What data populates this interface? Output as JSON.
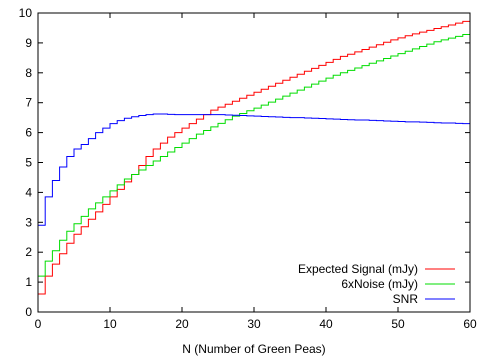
{
  "chart_data": {
    "type": "line",
    "title": "",
    "xlabel": "N (Number of Green Peas)",
    "ylabel": "",
    "xlim": [
      0,
      60
    ],
    "ylim": [
      0,
      10
    ],
    "x_ticks": [
      0,
      10,
      20,
      30,
      40,
      50,
      60
    ],
    "y_ticks": [
      0,
      1,
      2,
      3,
      4,
      5,
      6,
      7,
      8,
      9,
      10
    ],
    "grid": false,
    "legend_position": "bottom-right",
    "step": true,
    "series": [
      {
        "name": "Expected Signal (mJy)",
        "color": "#ff0000",
        "x": [
          0,
          1,
          2,
          3,
          4,
          5,
          6,
          7,
          8,
          9,
          10,
          11,
          12,
          13,
          14,
          15,
          16,
          17,
          18,
          19,
          20,
          21,
          22,
          23,
          24,
          25,
          26,
          27,
          28,
          29,
          30,
          31,
          32,
          33,
          34,
          35,
          36,
          37,
          38,
          39,
          40,
          41,
          42,
          43,
          44,
          45,
          46,
          47,
          48,
          49,
          50,
          51,
          52,
          53,
          54,
          55,
          56,
          57,
          58,
          59,
          60
        ],
        "y": [
          0.6,
          1.2,
          1.6,
          1.95,
          2.3,
          2.6,
          2.85,
          3.1,
          3.35,
          3.6,
          3.85,
          4.1,
          4.35,
          4.6,
          4.9,
          5.2,
          5.45,
          5.65,
          5.85,
          6.0,
          6.15,
          6.3,
          6.45,
          6.6,
          6.75,
          6.85,
          6.95,
          7.05,
          7.15,
          7.25,
          7.35,
          7.45,
          7.55,
          7.65,
          7.75,
          7.85,
          7.95,
          8.05,
          8.15,
          8.25,
          8.35,
          8.45,
          8.55,
          8.62,
          8.7,
          8.78,
          8.86,
          8.94,
          9.02,
          9.1,
          9.17,
          9.24,
          9.3,
          9.36,
          9.42,
          9.48,
          9.54,
          9.6,
          9.66,
          9.72,
          9.77
        ]
      },
      {
        "name": "6xNoise (mJy)",
        "color": "#00dd00",
        "x": [
          0,
          1,
          2,
          3,
          4,
          5,
          6,
          7,
          8,
          9,
          10,
          11,
          12,
          13,
          14,
          15,
          16,
          17,
          18,
          19,
          20,
          21,
          22,
          23,
          24,
          25,
          26,
          27,
          28,
          29,
          30,
          31,
          32,
          33,
          34,
          35,
          36,
          37,
          38,
          39,
          40,
          41,
          42,
          43,
          44,
          45,
          46,
          47,
          48,
          49,
          50,
          51,
          52,
          53,
          54,
          55,
          56,
          57,
          58,
          59,
          60
        ],
        "y": [
          1.2,
          1.7,
          2.05,
          2.4,
          2.7,
          2.95,
          3.2,
          3.45,
          3.65,
          3.85,
          4.05,
          4.25,
          4.45,
          4.6,
          4.75,
          4.9,
          5.05,
          5.2,
          5.35,
          5.5,
          5.65,
          5.8,
          5.95,
          6.07,
          6.19,
          6.31,
          6.43,
          6.55,
          6.64,
          6.73,
          6.82,
          6.92,
          7.02,
          7.12,
          7.22,
          7.32,
          7.42,
          7.52,
          7.62,
          7.72,
          7.82,
          7.92,
          8.0,
          8.08,
          8.16,
          8.24,
          8.32,
          8.4,
          8.48,
          8.56,
          8.64,
          8.72,
          8.8,
          8.88,
          8.96,
          9.04,
          9.1,
          9.16,
          9.22,
          9.28,
          9.32
        ]
      },
      {
        "name": "SNR",
        "color": "#0000ff",
        "x": [
          0,
          1,
          2,
          3,
          4,
          5,
          6,
          7,
          8,
          9,
          10,
          11,
          12,
          13,
          14,
          15,
          16,
          17,
          18,
          19,
          20,
          21,
          22,
          23,
          24,
          25,
          26,
          27,
          28,
          29,
          30,
          31,
          32,
          33,
          34,
          35,
          36,
          37,
          38,
          39,
          40,
          41,
          42,
          43,
          44,
          45,
          46,
          47,
          48,
          49,
          50,
          51,
          52,
          53,
          54,
          55,
          56,
          57,
          58,
          59,
          60
        ],
        "y": [
          2.9,
          3.85,
          4.4,
          4.85,
          5.2,
          5.45,
          5.6,
          5.8,
          6.0,
          6.15,
          6.3,
          6.4,
          6.48,
          6.53,
          6.57,
          6.6,
          6.62,
          6.62,
          6.61,
          6.6,
          6.6,
          6.6,
          6.6,
          6.6,
          6.6,
          6.6,
          6.59,
          6.58,
          6.57,
          6.56,
          6.55,
          6.54,
          6.53,
          6.52,
          6.51,
          6.5,
          6.5,
          6.49,
          6.48,
          6.47,
          6.46,
          6.45,
          6.44,
          6.43,
          6.42,
          6.42,
          6.41,
          6.4,
          6.39,
          6.38,
          6.37,
          6.36,
          6.36,
          6.35,
          6.34,
          6.33,
          6.32,
          6.32,
          6.31,
          6.3,
          6.3
        ]
      }
    ]
  }
}
